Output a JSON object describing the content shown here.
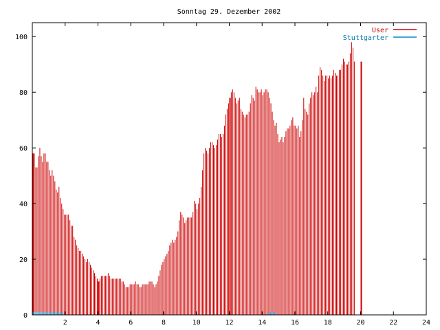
{
  "chart_data": {
    "type": "bar",
    "title": "Sonntag 29. Dezember 2002",
    "xlabel": "",
    "ylabel": "",
    "xlim": [
      0,
      24
    ],
    "ylim": [
      0,
      105
    ],
    "x_ticks": [
      "2",
      "4",
      "6",
      "8",
      "10",
      "12",
      "14",
      "16",
      "18",
      "20",
      "22",
      "24"
    ],
    "y_ticks": [
      "0",
      "20",
      "40",
      "60",
      "80",
      "100"
    ],
    "legend_position": "top-right",
    "grid": false,
    "series": [
      {
        "name": "User",
        "color": "#cc0000",
        "x_start": 0,
        "x_step": 0.0833,
        "values": [
          58,
          58,
          53,
          53,
          57,
          60,
          57,
          55,
          58,
          58,
          55,
          55,
          52,
          50,
          52,
          50,
          48,
          45,
          44,
          46,
          42,
          40,
          38,
          36,
          36,
          36,
          36,
          34,
          32,
          32,
          28,
          27,
          25,
          24,
          23,
          23,
          22,
          21,
          20,
          19,
          20,
          19,
          18,
          17,
          16,
          15,
          14,
          13,
          12,
          13,
          14,
          14,
          14,
          14,
          14,
          15,
          14,
          13,
          13,
          13,
          13,
          13,
          13,
          13,
          13,
          12,
          12,
          11,
          10,
          10,
          10,
          11,
          11,
          11,
          11,
          12,
          11,
          11,
          10,
          10,
          11,
          11,
          11,
          11,
          11,
          12,
          12,
          12,
          11,
          10,
          11,
          12,
          14,
          16,
          18,
          19,
          20,
          21,
          22,
          23,
          25,
          26,
          27,
          26,
          27,
          28,
          30,
          34,
          37,
          36,
          35,
          33,
          34,
          35,
          35,
          35,
          35,
          37,
          41,
          40,
          38,
          40,
          42,
          46,
          52,
          58,
          60,
          59,
          58,
          60,
          62,
          62,
          61,
          60,
          61,
          63,
          65,
          65,
          64,
          65,
          68,
          72,
          74,
          76,
          78,
          80,
          81,
          80,
          78,
          76,
          77,
          78,
          74,
          73,
          72,
          71,
          72,
          72,
          73,
          76,
          79,
          78,
          77,
          82,
          81,
          80,
          80,
          81,
          79,
          80,
          81,
          81,
          80,
          78,
          76,
          73,
          70,
          68,
          69,
          65,
          62,
          63,
          64,
          62,
          64,
          66,
          67,
          67,
          68,
          70,
          71,
          68,
          68,
          67,
          68,
          64,
          66,
          70,
          78,
          74,
          73,
          72,
          76,
          78,
          80,
          79,
          80,
          82,
          80,
          86,
          89,
          88,
          86,
          84,
          86,
          86,
          85,
          86,
          85,
          86,
          88,
          87,
          86,
          86,
          88,
          88,
          90,
          92,
          91,
          90,
          90,
          91,
          94,
          98,
          96,
          91
        ]
      },
      {
        "name": "Stuttgarter",
        "color": "#0088cc",
        "segments": [
          [
            0,
            1.8
          ],
          [
            14.4,
            14.75
          ]
        ],
        "value": 1
      }
    ],
    "highlight_bars_x": [
      0,
      4,
      12,
      20
    ],
    "highlight_color": "#cc0000"
  }
}
